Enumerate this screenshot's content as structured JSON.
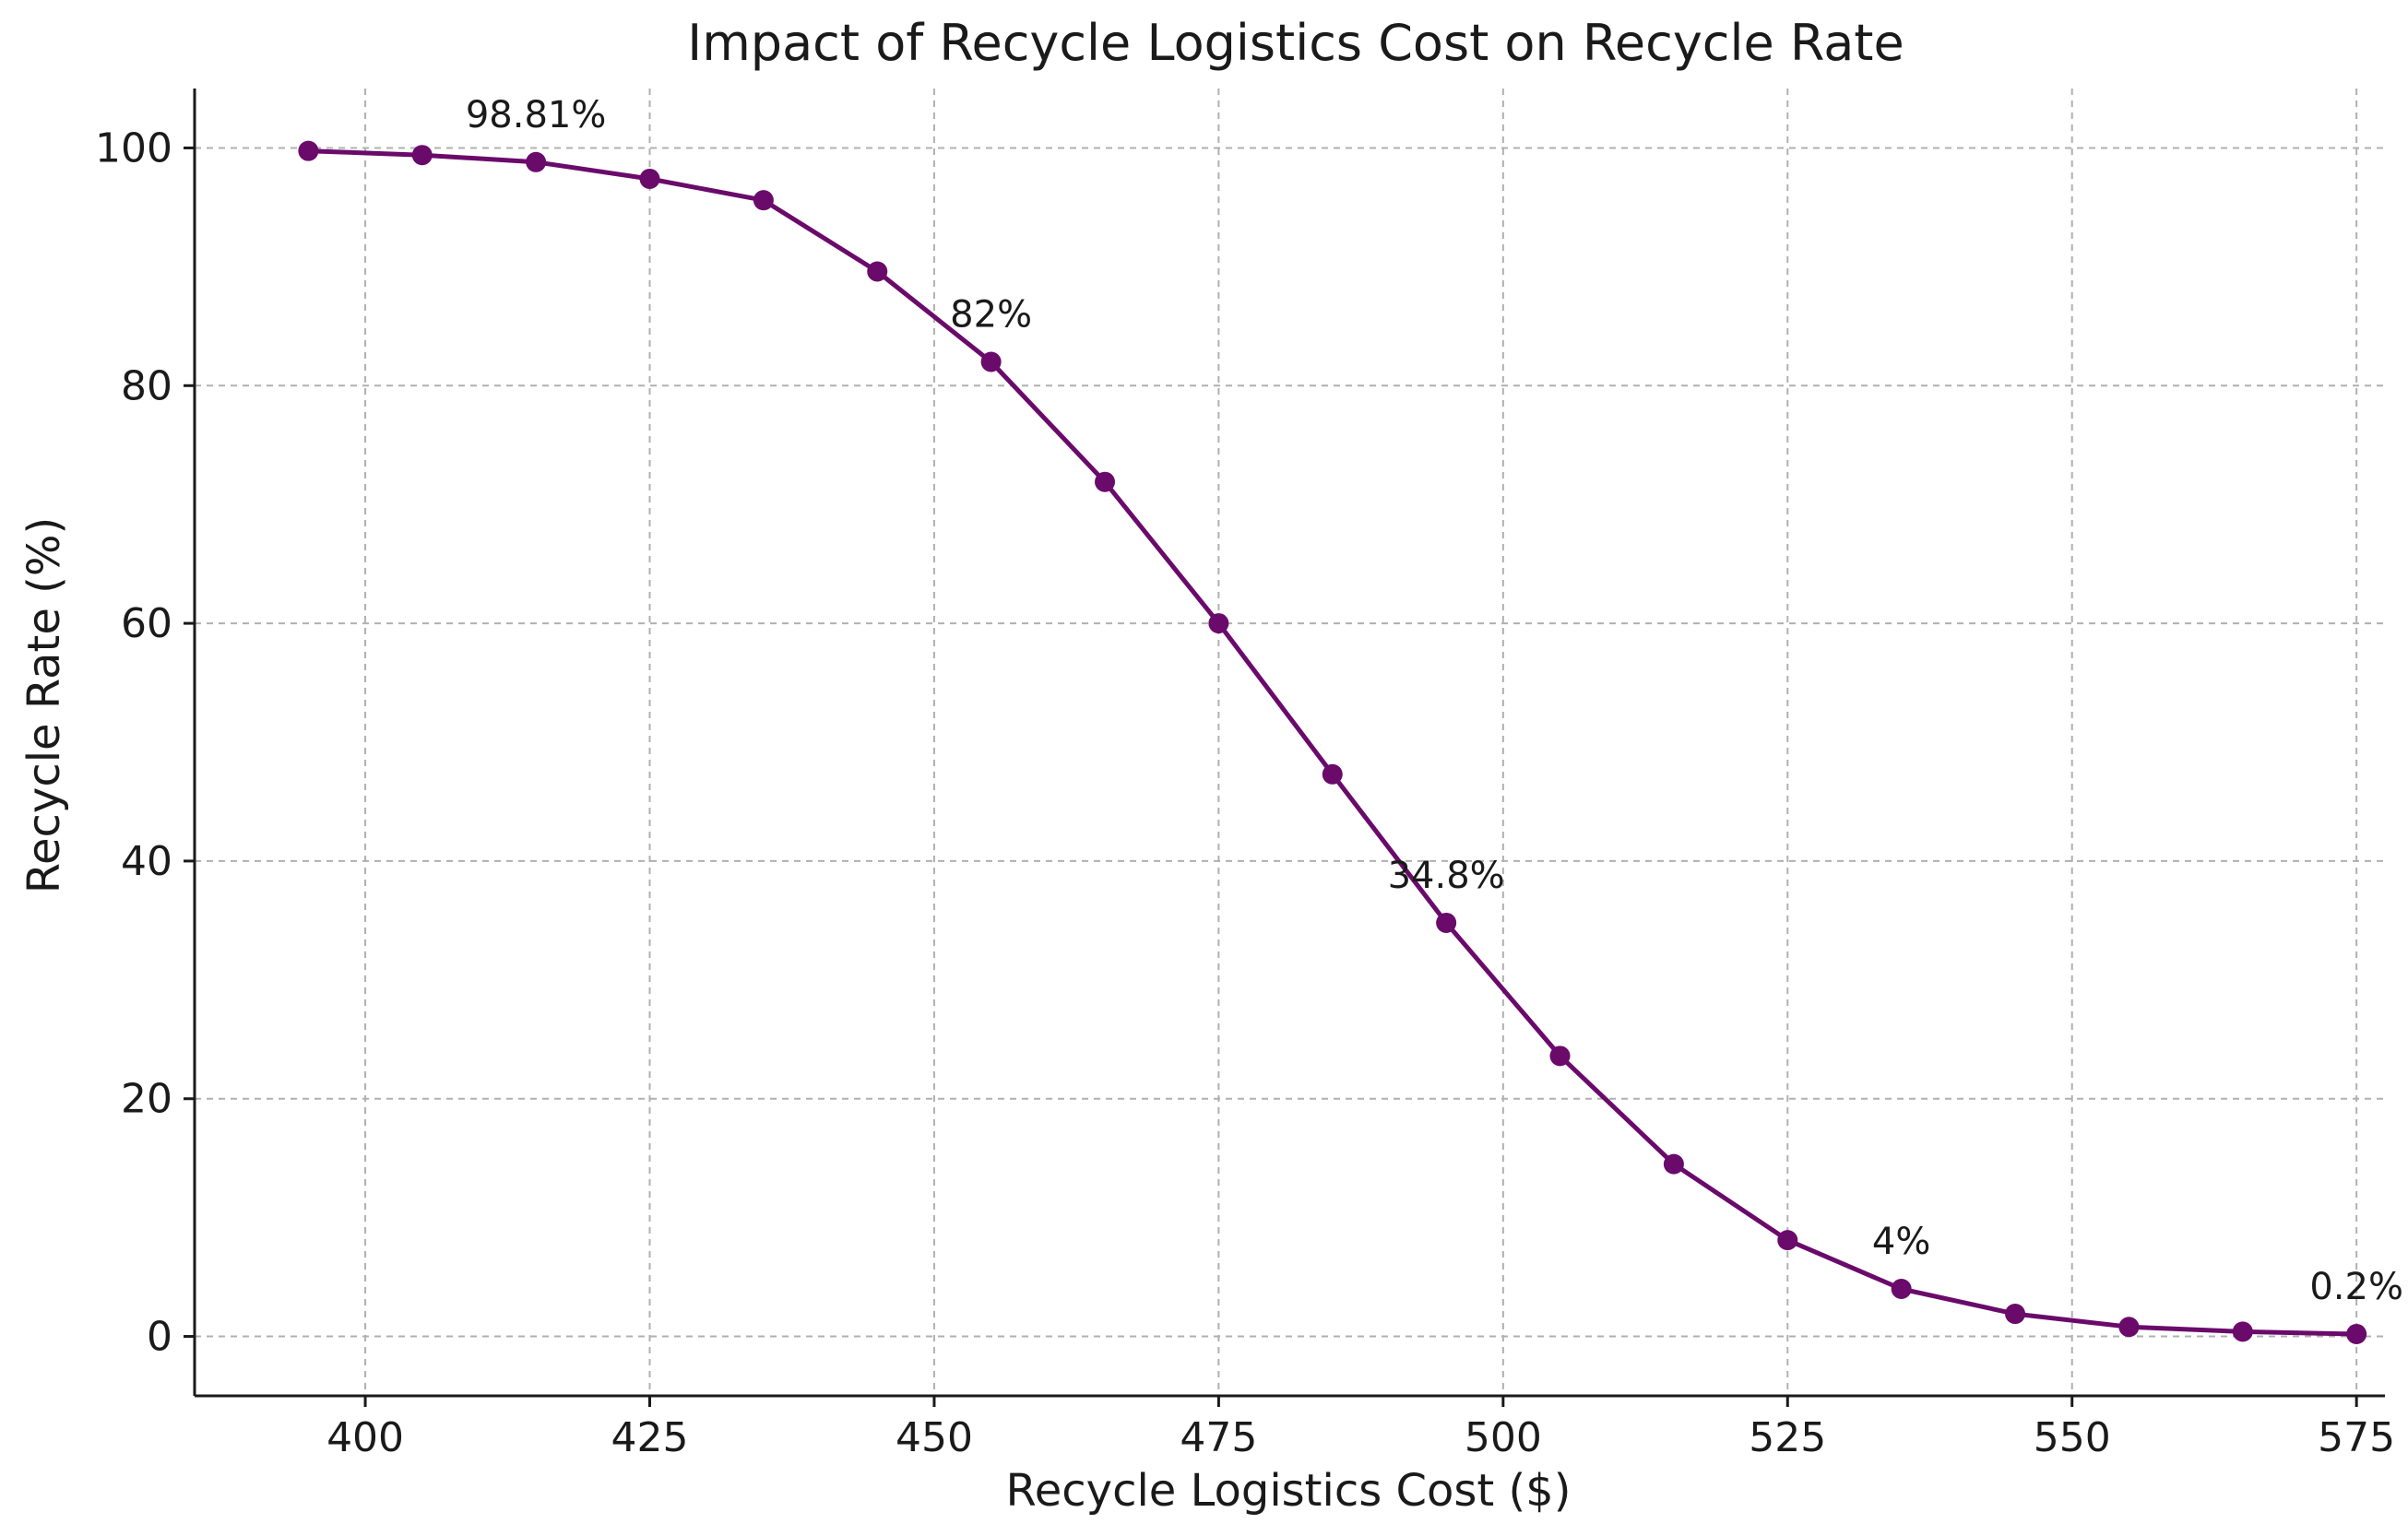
{
  "chart_data": {
    "type": "line",
    "title": "Impact of Recycle Logistics Cost on Recycle Rate",
    "xlabel": "Recycle Logistics Cost ($)",
    "ylabel": "Recycle Rate (%)",
    "xlim": [
      385,
      577.5
    ],
    "ylim": [
      -5,
      105
    ],
    "x_ticks": [
      400,
      425,
      450,
      475,
      500,
      525,
      550,
      575
    ],
    "y_ticks": [
      0,
      20,
      40,
      60,
      80,
      100
    ],
    "grid": true,
    "series": [
      {
        "name": "Recycle Rate",
        "color": "#6a0a6b",
        "x": [
          395,
          405,
          415,
          425,
          435,
          445,
          455,
          465,
          475,
          485,
          495,
          505,
          515,
          525,
          535,
          545,
          555,
          565,
          575
        ],
        "y": [
          99.75,
          99.4,
          98.81,
          97.4,
          95.6,
          89.6,
          82.0,
          71.9,
          60.0,
          47.3,
          34.8,
          23.6,
          14.5,
          8.1,
          4.0,
          1.9,
          0.8,
          0.4,
          0.2
        ]
      }
    ],
    "annotations": [
      {
        "x": 415,
        "y": 98.81,
        "text": "98.81%"
      },
      {
        "x": 455,
        "y": 82.0,
        "text": "82%"
      },
      {
        "x": 495,
        "y": 34.8,
        "text": "34.8%"
      },
      {
        "x": 535,
        "y": 4.0,
        "text": "4%"
      },
      {
        "x": 575,
        "y": 0.2,
        "text": "0.2%"
      }
    ]
  }
}
